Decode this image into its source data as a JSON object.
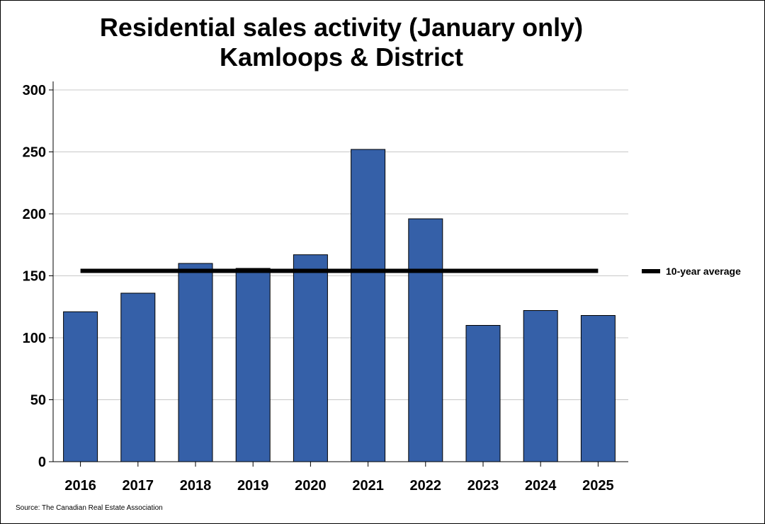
{
  "chart_data": {
    "type": "bar",
    "title_lines": [
      "Residential sales activity (January only)",
      "Kamloops & District"
    ],
    "xlabel": "",
    "ylabel": "",
    "categories": [
      "2016",
      "2017",
      "2018",
      "2019",
      "2020",
      "2021",
      "2022",
      "2023",
      "2024",
      "2025"
    ],
    "series": [
      {
        "values": [
          121,
          136,
          160,
          156,
          167,
          252,
          196,
          110,
          122,
          118
        ],
        "color": "#3560a8"
      }
    ],
    "reference_line": {
      "name": "10-year average",
      "value": 154,
      "color": "#000000"
    },
    "ylim": [
      0,
      300
    ],
    "yticks": [
      0,
      50,
      100,
      150,
      200,
      250,
      300
    ],
    "grid": true,
    "legend_position": "right",
    "source": "Source: The Canadian Real Estate Association"
  }
}
